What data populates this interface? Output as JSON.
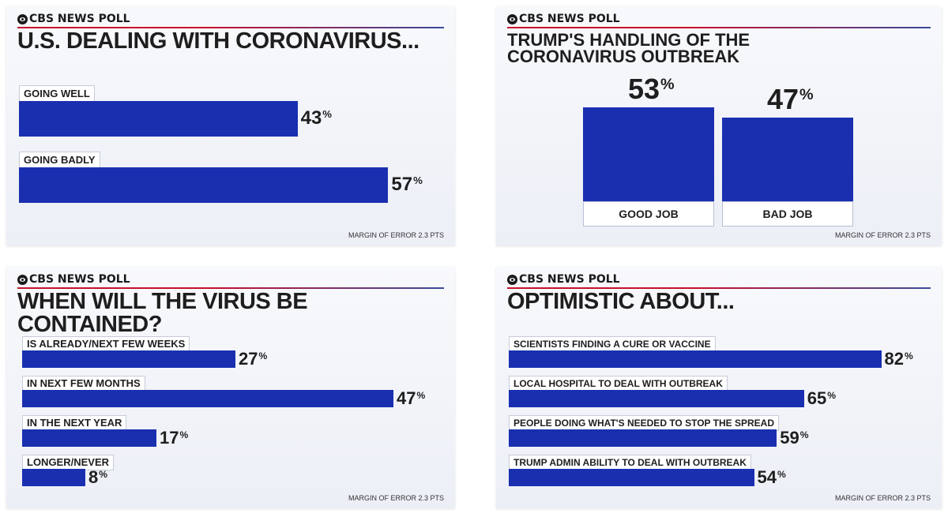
{
  "chart_data": [
    {
      "type": "bar",
      "orientation": "horizontal",
      "brand": "CBS NEWS POLL",
      "title": "U.S. DEALING WITH CORONAVIRUS...",
      "categories": [
        "GOING WELL",
        "GOING BADLY"
      ],
      "values": [
        43,
        57
      ],
      "value_labels": [
        "43",
        "57"
      ],
      "unit": "%",
      "footnote": "MARGIN OF ERROR 2.3 PTS"
    },
    {
      "type": "bar",
      "orientation": "vertical",
      "brand": "CBS NEWS POLL",
      "title": "TRUMP'S HANDLING OF THE CORONAVIRUS OUTBREAK",
      "title_lines": [
        "TRUMP'S HANDLING OF THE",
        "CORONAVIRUS OUTBREAK"
      ],
      "categories": [
        "GOOD JOB",
        "BAD JOB"
      ],
      "values": [
        53,
        47
      ],
      "value_labels": [
        "53",
        "47"
      ],
      "unit": "%",
      "footnote": "MARGIN OF ERROR 2.3 PTS"
    },
    {
      "type": "bar",
      "orientation": "horizontal",
      "brand": "CBS NEWS POLL",
      "title": "WHEN WILL THE VIRUS BE CONTAINED?",
      "categories": [
        "IS ALREADY/NEXT FEW WEEKS",
        "IN NEXT FEW MONTHS",
        "IN THE NEXT YEAR",
        "LONGER/NEVER"
      ],
      "values": [
        27,
        47,
        17,
        8
      ],
      "value_labels": [
        "27",
        "47",
        "17",
        "8"
      ],
      "unit": "%",
      "footnote": "MARGIN OF ERROR 2.3 PTS"
    },
    {
      "type": "bar",
      "orientation": "horizontal",
      "brand": "CBS NEWS POLL",
      "title": "OPTIMISTIC ABOUT...",
      "categories": [
        "SCIENTISTS FINDING A CURE OR VACCINE",
        "LOCAL HOSPITAL TO DEAL WITH OUTBREAK",
        "PEOPLE DOING WHAT'S NEEDED TO STOP THE SPREAD",
        "TRUMP ADMIN ABILITY TO DEAL WITH OUTBREAK"
      ],
      "values": [
        82,
        65,
        59,
        54
      ],
      "value_labels": [
        "82",
        "65",
        "59",
        "54"
      ],
      "unit": "%",
      "footnote": "MARGIN OF ERROR 2.3 PTS"
    }
  ],
  "colors": {
    "bar": "#1a2fb0",
    "accent_red": "#c8102e"
  }
}
